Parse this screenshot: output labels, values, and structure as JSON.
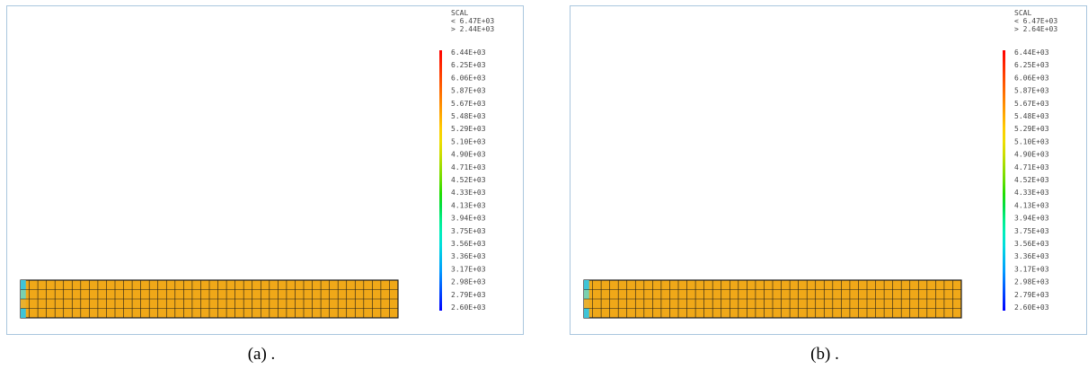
{
  "panels": [
    {
      "id": "a",
      "legend": {
        "title": "SCAL",
        "upper": "< 6.47E+03",
        "lower": "> 2.44E+03",
        "ticks": [
          "6.44E+03",
          "6.25E+03",
          "6.06E+03",
          "5.87E+03",
          "5.67E+03",
          "5.48E+03",
          "5.29E+03",
          "5.10E+03",
          "4.90E+03",
          "4.71E+03",
          "4.52E+03",
          "4.33E+03",
          "4.13E+03",
          "3.94E+03",
          "3.75E+03",
          "3.56E+03",
          "3.36E+03",
          "3.17E+03",
          "2.98E+03",
          "2.79E+03",
          "2.60E+03"
        ]
      },
      "caption": "(a) ."
    },
    {
      "id": "b",
      "legend": {
        "title": "SCAL",
        "upper": "< 6.47E+03",
        "lower": "> 2.64E+03",
        "ticks": [
          "6.44E+03",
          "6.25E+03",
          "6.06E+03",
          "5.87E+03",
          "5.67E+03",
          "5.48E+03",
          "5.29E+03",
          "5.10E+03",
          "4.90E+03",
          "4.71E+03",
          "4.52E+03",
          "4.33E+03",
          "4.13E+03",
          "3.94E+03",
          "3.75E+03",
          "3.56E+03",
          "3.36E+03",
          "3.17E+03",
          "2.98E+03",
          "2.79E+03",
          "2.60E+03"
        ]
      },
      "caption": "(b) ."
    }
  ],
  "colors": {
    "mesh_fill": "#f0a818",
    "mesh_line": "#1a1a1a",
    "cold_edge": [
      "#3fc4d8",
      "#7ad0b0",
      "#e8b030"
    ],
    "colormap": [
      "#0000ff",
      "#0033ff",
      "#0066ff",
      "#0099ff",
      "#00bbee",
      "#00dddd",
      "#00eebb",
      "#00ee88",
      "#00dd44",
      "#22dd00",
      "#66dd00",
      "#99dd00",
      "#ccdd00",
      "#eedd00",
      "#ffcc00",
      "#ffaa00",
      "#ff8800",
      "#ff6600",
      "#ff4400",
      "#ff2200",
      "#ff0000"
    ]
  }
}
